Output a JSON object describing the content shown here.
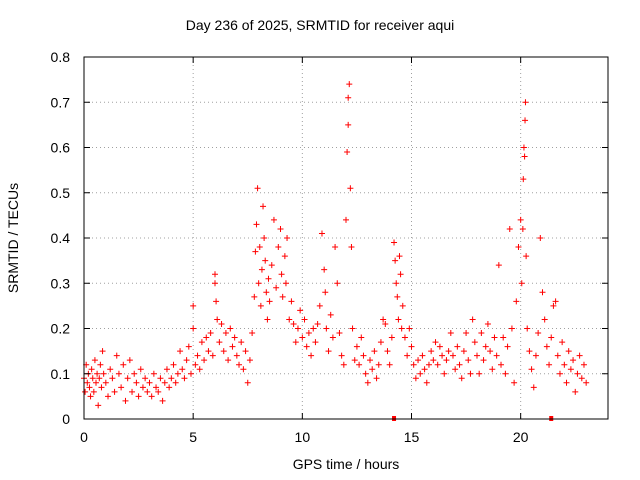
{
  "chart_data": {
    "type": "scatter",
    "title": "Day 236 of 2025, SRMTID for receiver aqui",
    "xlabel": "GPS time / hours",
    "ylabel": "SRMTID / TECUs",
    "xlim": [
      0,
      24
    ],
    "ylim": [
      0,
      0.8
    ],
    "xticks": [
      0,
      5,
      10,
      15,
      20
    ],
    "xtick_labels": [
      "0",
      "5",
      "10",
      "15",
      "20"
    ],
    "yticks": [
      0,
      0.1,
      0.2,
      0.3,
      0.4,
      0.5,
      0.6,
      0.7,
      0.8
    ],
    "ytick_labels": [
      "0",
      "0.1",
      "0.2",
      "0.3",
      "0.4",
      "0.5",
      "0.6",
      "0.7",
      "0.8"
    ],
    "grid": true,
    "marker": "+",
    "color": "#ff0000",
    "series": [
      {
        "name": "SRMTID",
        "points": [
          [
            0.0,
            0.09
          ],
          [
            0.05,
            0.06
          ],
          [
            0.1,
            0.12
          ],
          [
            0.15,
            0.08
          ],
          [
            0.2,
            0.1
          ],
          [
            0.25,
            0.07
          ],
          [
            0.3,
            0.05
          ],
          [
            0.35,
            0.11
          ],
          [
            0.4,
            0.09
          ],
          [
            0.45,
            0.06
          ],
          [
            0.5,
            0.13
          ],
          [
            0.55,
            0.08
          ],
          [
            0.6,
            0.1
          ],
          [
            0.65,
            0.03
          ],
          [
            0.7,
            0.09
          ],
          [
            0.75,
            0.12
          ],
          [
            0.8,
            0.07
          ],
          [
            0.85,
            0.15
          ],
          [
            0.9,
            0.1
          ],
          [
            1.0,
            0.08
          ],
          [
            1.1,
            0.05
          ],
          [
            1.2,
            0.11
          ],
          [
            1.3,
            0.09
          ],
          [
            1.4,
            0.06
          ],
          [
            1.5,
            0.14
          ],
          [
            1.6,
            0.1
          ],
          [
            1.7,
            0.07
          ],
          [
            1.8,
            0.12
          ],
          [
            1.9,
            0.04
          ],
          [
            2.0,
            0.09
          ],
          [
            2.1,
            0.13
          ],
          [
            2.2,
            0.06
          ],
          [
            2.3,
            0.1
          ],
          [
            2.4,
            0.08
          ],
          [
            2.5,
            0.05
          ],
          [
            2.6,
            0.11
          ],
          [
            2.7,
            0.07
          ],
          [
            2.8,
            0.09
          ],
          [
            2.9,
            0.06
          ],
          [
            3.0,
            0.08
          ],
          [
            3.1,
            0.05
          ],
          [
            3.2,
            0.1
          ],
          [
            3.3,
            0.07
          ],
          [
            3.4,
            0.06
          ],
          [
            3.5,
            0.09
          ],
          [
            3.6,
            0.04
          ],
          [
            3.7,
            0.08
          ],
          [
            3.8,
            0.11
          ],
          [
            3.9,
            0.07
          ],
          [
            4.0,
            0.09
          ],
          [
            4.1,
            0.12
          ],
          [
            4.2,
            0.08
          ],
          [
            4.3,
            0.1
          ],
          [
            4.4,
            0.15
          ],
          [
            4.5,
            0.11
          ],
          [
            4.6,
            0.09
          ],
          [
            4.7,
            0.13
          ],
          [
            4.8,
            0.16
          ],
          [
            4.9,
            0.1
          ],
          [
            5.0,
            0.25
          ],
          [
            5.0,
            0.2
          ],
          [
            5.1,
            0.12
          ],
          [
            5.2,
            0.14
          ],
          [
            5.3,
            0.11
          ],
          [
            5.4,
            0.17
          ],
          [
            5.5,
            0.13
          ],
          [
            5.6,
            0.18
          ],
          [
            5.7,
            0.15
          ],
          [
            5.8,
            0.19
          ],
          [
            5.9,
            0.14
          ],
          [
            6.0,
            0.3
          ],
          [
            6.0,
            0.32
          ],
          [
            6.05,
            0.26
          ],
          [
            6.1,
            0.22
          ],
          [
            6.2,
            0.17
          ],
          [
            6.3,
            0.21
          ],
          [
            6.4,
            0.15
          ],
          [
            6.5,
            0.19
          ],
          [
            6.6,
            0.13
          ],
          [
            6.7,
            0.2
          ],
          [
            6.8,
            0.16
          ],
          [
            6.9,
            0.18
          ],
          [
            7.0,
            0.14
          ],
          [
            7.1,
            0.12
          ],
          [
            7.2,
            0.17
          ],
          [
            7.3,
            0.11
          ],
          [
            7.4,
            0.15
          ],
          [
            7.5,
            0.08
          ],
          [
            7.6,
            0.13
          ],
          [
            7.7,
            0.19
          ],
          [
            7.8,
            0.27
          ],
          [
            7.85,
            0.37
          ],
          [
            7.9,
            0.43
          ],
          [
            7.95,
            0.51
          ],
          [
            8.0,
            0.3
          ],
          [
            8.05,
            0.38
          ],
          [
            8.1,
            0.25
          ],
          [
            8.15,
            0.33
          ],
          [
            8.2,
            0.47
          ],
          [
            8.25,
            0.4
          ],
          [
            8.3,
            0.35
          ],
          [
            8.35,
            0.28
          ],
          [
            8.4,
            0.22
          ],
          [
            8.45,
            0.31
          ],
          [
            8.5,
            0.26
          ],
          [
            8.6,
            0.34
          ],
          [
            8.7,
            0.44
          ],
          [
            8.8,
            0.29
          ],
          [
            8.9,
            0.38
          ],
          [
            9.0,
            0.42
          ],
          [
            9.05,
            0.32
          ],
          [
            9.1,
            0.27
          ],
          [
            9.2,
            0.36
          ],
          [
            9.25,
            0.3
          ],
          [
            9.3,
            0.4
          ],
          [
            9.4,
            0.22
          ],
          [
            9.5,
            0.26
          ],
          [
            9.6,
            0.21
          ],
          [
            9.7,
            0.17
          ],
          [
            9.8,
            0.2
          ],
          [
            9.9,
            0.24
          ],
          [
            10.0,
            0.18
          ],
          [
            10.1,
            0.22
          ],
          [
            10.2,
            0.16
          ],
          [
            10.3,
            0.19
          ],
          [
            10.4,
            0.14
          ],
          [
            10.5,
            0.2
          ],
          [
            10.6,
            0.17
          ],
          [
            10.7,
            0.21
          ],
          [
            10.8,
            0.25
          ],
          [
            10.9,
            0.41
          ],
          [
            11.0,
            0.33
          ],
          [
            11.05,
            0.28
          ],
          [
            11.1,
            0.2
          ],
          [
            11.2,
            0.15
          ],
          [
            11.3,
            0.23
          ],
          [
            11.4,
            0.18
          ],
          [
            11.5,
            0.38
          ],
          [
            11.6,
            0.3
          ],
          [
            11.7,
            0.19
          ],
          [
            11.8,
            0.14
          ],
          [
            11.9,
            0.12
          ],
          [
            12.0,
            0.44
          ],
          [
            12.05,
            0.59
          ],
          [
            12.1,
            0.71
          ],
          [
            12.15,
            0.74
          ],
          [
            12.1,
            0.65
          ],
          [
            12.2,
            0.51
          ],
          [
            12.25,
            0.38
          ],
          [
            12.3,
            0.2
          ],
          [
            12.4,
            0.13
          ],
          [
            12.5,
            0.16
          ],
          [
            12.6,
            0.12
          ],
          [
            12.7,
            0.18
          ],
          [
            12.8,
            0.14
          ],
          [
            12.9,
            0.1
          ],
          [
            13.0,
            0.08
          ],
          [
            13.1,
            0.13
          ],
          [
            13.2,
            0.11
          ],
          [
            13.3,
            0.15
          ],
          [
            13.4,
            0.09
          ],
          [
            13.5,
            0.12
          ],
          [
            13.6,
            0.17
          ],
          [
            13.7,
            0.22
          ],
          [
            13.8,
            0.21
          ],
          [
            13.9,
            0.15
          ],
          [
            14.0,
            0.12
          ],
          [
            14.1,
            0.18
          ],
          [
            14.2,
            0.39
          ],
          [
            14.25,
            0.35
          ],
          [
            14.3,
            0.3
          ],
          [
            14.35,
            0.27
          ],
          [
            14.4,
            0.22
          ],
          [
            14.45,
            0.36
          ],
          [
            14.5,
            0.32
          ],
          [
            14.55,
            0.2
          ],
          [
            14.6,
            0.25
          ],
          [
            14.7,
            0.18
          ],
          [
            14.8,
            0.14
          ],
          [
            14.9,
            0.2
          ],
          [
            15.0,
            0.16
          ],
          [
            15.1,
            0.12
          ],
          [
            15.2,
            0.09
          ],
          [
            15.3,
            0.13
          ],
          [
            15.4,
            0.1
          ],
          [
            15.5,
            0.14
          ],
          [
            15.6,
            0.11
          ],
          [
            15.7,
            0.08
          ],
          [
            15.8,
            0.12
          ],
          [
            15.9,
            0.15
          ],
          [
            16.0,
            0.13
          ],
          [
            16.1,
            0.17
          ],
          [
            16.2,
            0.12
          ],
          [
            16.3,
            0.16
          ],
          [
            16.4,
            0.14
          ],
          [
            16.5,
            0.1
          ],
          [
            16.6,
            0.13
          ],
          [
            16.7,
            0.15
          ],
          [
            16.8,
            0.19
          ],
          [
            16.9,
            0.14
          ],
          [
            17.0,
            0.11
          ],
          [
            17.1,
            0.16
          ],
          [
            17.2,
            0.12
          ],
          [
            17.3,
            0.09
          ],
          [
            17.4,
            0.15
          ],
          [
            17.5,
            0.19
          ],
          [
            17.6,
            0.13
          ],
          [
            17.7,
            0.1
          ],
          [
            17.8,
            0.22
          ],
          [
            17.9,
            0.17
          ],
          [
            18.0,
            0.14
          ],
          [
            18.1,
            0.1
          ],
          [
            18.2,
            0.19
          ],
          [
            18.3,
            0.13
          ],
          [
            18.4,
            0.16
          ],
          [
            18.5,
            0.21
          ],
          [
            18.6,
            0.15
          ],
          [
            18.7,
            0.11
          ],
          [
            18.8,
            0.18
          ],
          [
            18.9,
            0.14
          ],
          [
            19.0,
            0.34
          ],
          [
            19.1,
            0.12
          ],
          [
            19.2,
            0.18
          ],
          [
            19.3,
            0.1
          ],
          [
            19.4,
            0.16
          ],
          [
            19.5,
            0.42
          ],
          [
            19.6,
            0.2
          ],
          [
            19.7,
            0.08
          ],
          [
            19.8,
            0.26
          ],
          [
            19.9,
            0.38
          ],
          [
            20.0,
            0.44
          ],
          [
            20.05,
            0.3
          ],
          [
            20.1,
            0.42
          ],
          [
            20.12,
            0.53
          ],
          [
            20.15,
            0.6
          ],
          [
            20.2,
            0.66
          ],
          [
            20.22,
            0.7
          ],
          [
            20.18,
            0.58
          ],
          [
            20.25,
            0.36
          ],
          [
            20.3,
            0.2
          ],
          [
            20.4,
            0.15
          ],
          [
            20.5,
            0.11
          ],
          [
            20.6,
            0.07
          ],
          [
            20.7,
            0.14
          ],
          [
            20.8,
            0.19
          ],
          [
            20.9,
            0.4
          ],
          [
            21.0,
            0.28
          ],
          [
            21.1,
            0.22
          ],
          [
            21.2,
            0.16
          ],
          [
            21.3,
            0.12
          ],
          [
            21.4,
            0.18
          ],
          [
            21.5,
            0.25
          ],
          [
            21.6,
            0.26
          ],
          [
            21.7,
            0.14
          ],
          [
            21.8,
            0.1
          ],
          [
            21.9,
            0.17
          ],
          [
            22.0,
            0.12
          ],
          [
            22.1,
            0.08
          ],
          [
            22.2,
            0.15
          ],
          [
            22.3,
            0.11
          ],
          [
            22.4,
            0.13
          ],
          [
            22.5,
            0.06
          ],
          [
            22.6,
            0.1
          ],
          [
            22.7,
            0.14
          ],
          [
            22.8,
            0.09
          ],
          [
            22.9,
            0.12
          ],
          [
            23.0,
            0.08
          ]
        ]
      }
    ],
    "extra_marks": {
      "name": "axis-markers",
      "points": [
        [
          14.2,
          0.0
        ],
        [
          21.4,
          0.0
        ]
      ]
    }
  }
}
